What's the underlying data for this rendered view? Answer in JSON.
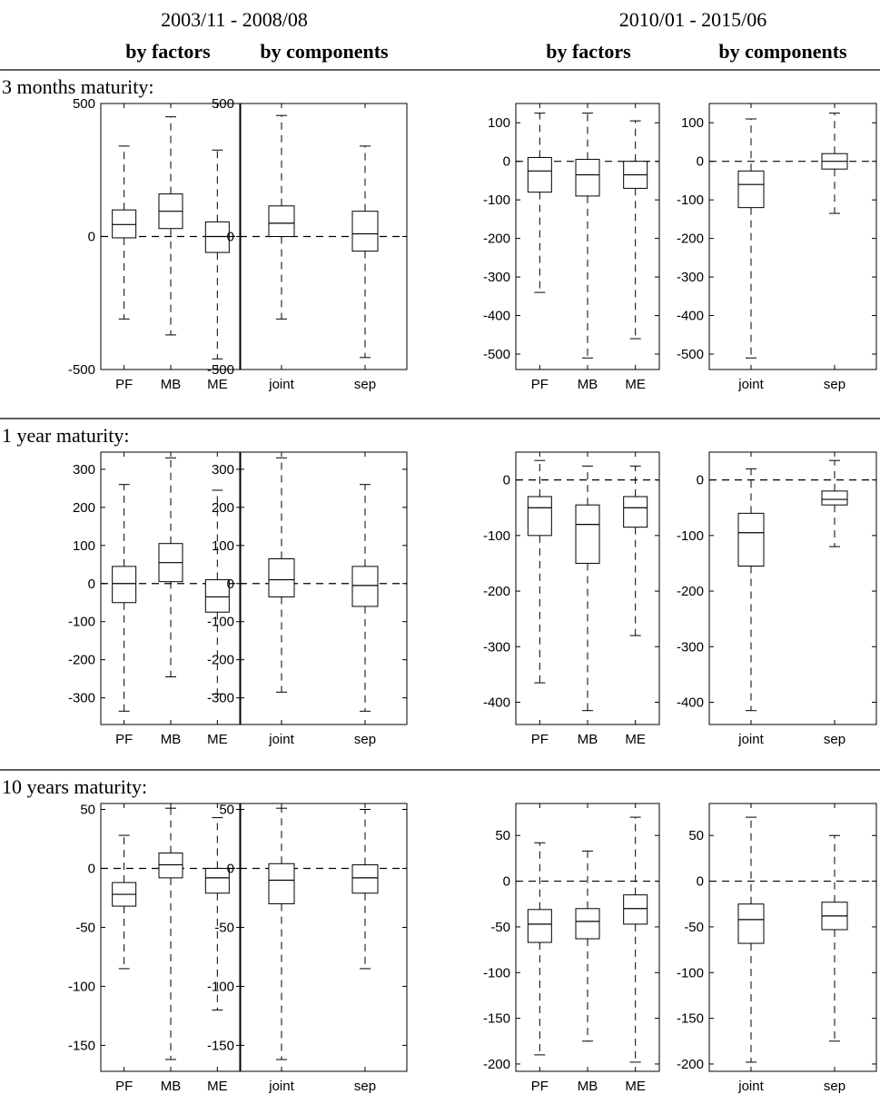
{
  "header": {
    "periods": [
      "2003/11 - 2008/08",
      "2010/01 - 2015/06"
    ],
    "subheaders": [
      "by factors",
      "by components",
      "by factors",
      "by components"
    ]
  },
  "sections": [
    {
      "label": "3 months maturity:"
    },
    {
      "label": "1 year maturity:"
    },
    {
      "label": "10 years maturity:"
    }
  ],
  "chart_data": [
    {
      "type": "box",
      "section": "3 months maturity:",
      "period": "2003/11 - 2008/08",
      "group": "by factors",
      "categories": [
        "PF",
        "MB",
        "ME"
      ],
      "ylim": [
        -500,
        500
      ],
      "yticks": [
        -500,
        0,
        500
      ],
      "ref_line": 0,
      "boxes": [
        {
          "whisker_low": -310,
          "q1": -5,
          "median": 45,
          "q3": 100,
          "whisker_high": 340
        },
        {
          "whisker_low": -370,
          "q1": 30,
          "median": 95,
          "q3": 160,
          "whisker_high": 450
        },
        {
          "whisker_low": -460,
          "q1": -60,
          "median": 0,
          "q3": 55,
          "whisker_high": 325
        }
      ]
    },
    {
      "type": "box",
      "section": "3 months maturity:",
      "period": "2003/11 - 2008/08",
      "group": "by components",
      "categories": [
        "joint",
        "sep"
      ],
      "ylim": [
        -500,
        500
      ],
      "yticks": [
        -500,
        0,
        500
      ],
      "ref_line": 0,
      "boxes": [
        {
          "whisker_low": -310,
          "q1": 0,
          "median": 50,
          "q3": 115,
          "whisker_high": 455
        },
        {
          "whisker_low": -455,
          "q1": -55,
          "median": 10,
          "q3": 95,
          "whisker_high": 340
        }
      ]
    },
    {
      "type": "box",
      "section": "3 months maturity:",
      "period": "2010/01 - 2015/06",
      "group": "by factors",
      "categories": [
        "PF",
        "MB",
        "ME"
      ],
      "ylim": [
        -540,
        150
      ],
      "yticks": [
        -500,
        -400,
        -300,
        -200,
        -100,
        0,
        100
      ],
      "ref_line": 0,
      "boxes": [
        {
          "whisker_low": -340,
          "q1": -80,
          "median": -25,
          "q3": 10,
          "whisker_high": 125
        },
        {
          "whisker_low": -510,
          "q1": -90,
          "median": -35,
          "q3": 5,
          "whisker_high": 125
        },
        {
          "whisker_low": -460,
          "q1": -70,
          "median": -35,
          "q3": 0,
          "whisker_high": 105
        }
      ]
    },
    {
      "type": "box",
      "section": "3 months maturity:",
      "period": "2010/01 - 2015/06",
      "group": "by components",
      "categories": [
        "joint",
        "sep"
      ],
      "ylim": [
        -540,
        150
      ],
      "yticks": [
        -500,
        -400,
        -300,
        -200,
        -100,
        0,
        100
      ],
      "ref_line": 0,
      "boxes": [
        {
          "whisker_low": -510,
          "q1": -120,
          "median": -60,
          "q3": -25,
          "whisker_high": 110
        },
        {
          "whisker_low": -135,
          "q1": -20,
          "median": 0,
          "q3": 20,
          "whisker_high": 125
        }
      ]
    },
    {
      "type": "box",
      "section": "1 year maturity:",
      "period": "2003/11 - 2008/08",
      "group": "by factors",
      "categories": [
        "PF",
        "MB",
        "ME"
      ],
      "ylim": [
        -370,
        345
      ],
      "yticks": [
        -300,
        -200,
        -100,
        0,
        100,
        200,
        300
      ],
      "ref_line": 0,
      "boxes": [
        {
          "whisker_low": -335,
          "q1": -50,
          "median": 0,
          "q3": 45,
          "whisker_high": 260
        },
        {
          "whisker_low": -245,
          "q1": 5,
          "median": 55,
          "q3": 105,
          "whisker_high": 330
        },
        {
          "whisker_low": -290,
          "q1": -75,
          "median": -35,
          "q3": 10,
          "whisker_high": 245
        }
      ]
    },
    {
      "type": "box",
      "section": "1 year maturity:",
      "period": "2003/11 - 2008/08",
      "group": "by components",
      "categories": [
        "joint",
        "sep"
      ],
      "ylim": [
        -370,
        345
      ],
      "yticks": [
        -300,
        -200,
        -100,
        0,
        100,
        200,
        300
      ],
      "ref_line": 0,
      "boxes": [
        {
          "whisker_low": -285,
          "q1": -35,
          "median": 10,
          "q3": 65,
          "whisker_high": 330
        },
        {
          "whisker_low": -335,
          "q1": -60,
          "median": -5,
          "q3": 45,
          "whisker_high": 260
        }
      ]
    },
    {
      "type": "box",
      "section": "1 year maturity:",
      "period": "2010/01 - 2015/06",
      "group": "by factors",
      "categories": [
        "PF",
        "MB",
        "ME"
      ],
      "ylim": [
        -440,
        50
      ],
      "yticks": [
        -400,
        -300,
        -200,
        -100,
        0
      ],
      "ref_line": 0,
      "boxes": [
        {
          "whisker_low": -365,
          "q1": -100,
          "median": -50,
          "q3": -30,
          "whisker_high": 35
        },
        {
          "whisker_low": -415,
          "q1": -150,
          "median": -80,
          "q3": -45,
          "whisker_high": 25
        },
        {
          "whisker_low": -280,
          "q1": -85,
          "median": -50,
          "q3": -30,
          "whisker_high": 25
        }
      ]
    },
    {
      "type": "box",
      "section": "1 year maturity:",
      "period": "2010/01 - 2015/06",
      "group": "by components",
      "categories": [
        "joint",
        "sep"
      ],
      "ylim": [
        -440,
        50
      ],
      "yticks": [
        -400,
        -300,
        -200,
        -100,
        0
      ],
      "ref_line": 0,
      "boxes": [
        {
          "whisker_low": -415,
          "q1": -155,
          "median": -95,
          "q3": -60,
          "whisker_high": 20
        },
        {
          "whisker_low": -120,
          "q1": -45,
          "median": -35,
          "q3": -20,
          "whisker_high": 35
        }
      ]
    },
    {
      "type": "box",
      "section": "10 years maturity:",
      "period": "2003/11 - 2008/08",
      "group": "by factors",
      "categories": [
        "PF",
        "MB",
        "ME"
      ],
      "ylim": [
        -172,
        55
      ],
      "yticks": [
        -150,
        -100,
        -50,
        0,
        50
      ],
      "ref_line": 0,
      "boxes": [
        {
          "whisker_low": -85,
          "q1": -32,
          "median": -22,
          "q3": -12,
          "whisker_high": 28
        },
        {
          "whisker_low": -162,
          "q1": -8,
          "median": 3,
          "q3": 13,
          "whisker_high": 51
        },
        {
          "whisker_low": -120,
          "q1": -21,
          "median": -8,
          "q3": 0,
          "whisker_high": 43
        }
      ]
    },
    {
      "type": "box",
      "section": "10 years maturity:",
      "period": "2003/11 - 2008/08",
      "group": "by components",
      "categories": [
        "joint",
        "sep"
      ],
      "ylim": [
        -172,
        55
      ],
      "yticks": [
        -150,
        -100,
        -50,
        0,
        50
      ],
      "ref_line": 0,
      "boxes": [
        {
          "whisker_low": -162,
          "q1": -30,
          "median": -10,
          "q3": 4,
          "whisker_high": 51
        },
        {
          "whisker_low": -85,
          "q1": -21,
          "median": -8,
          "q3": 3,
          "whisker_high": 50
        }
      ]
    },
    {
      "type": "box",
      "section": "10 years maturity:",
      "period": "2010/01 - 2015/06",
      "group": "by factors",
      "categories": [
        "PF",
        "MB",
        "ME"
      ],
      "ylim": [
        -208,
        85
      ],
      "yticks": [
        -200,
        -150,
        -100,
        -50,
        0,
        50
      ],
      "ref_line": 0,
      "boxes": [
        {
          "whisker_low": -190,
          "q1": -67,
          "median": -47,
          "q3": -31,
          "whisker_high": 42
        },
        {
          "whisker_low": -175,
          "q1": -63,
          "median": -44,
          "q3": -30,
          "whisker_high": 33
        },
        {
          "whisker_low": -198,
          "q1": -47,
          "median": -30,
          "q3": -15,
          "whisker_high": 70
        }
      ]
    },
    {
      "type": "box",
      "section": "10 years maturity:",
      "period": "2010/01 - 2015/06",
      "group": "by components",
      "categories": [
        "joint",
        "sep"
      ],
      "ylim": [
        -208,
        85
      ],
      "yticks": [
        -200,
        -150,
        -100,
        -50,
        0,
        50
      ],
      "ref_line": 0,
      "boxes": [
        {
          "whisker_low": -198,
          "q1": -68,
          "median": -42,
          "q3": -25,
          "whisker_high": 70
        },
        {
          "whisker_low": -175,
          "q1": -53,
          "median": -38,
          "q3": -23,
          "whisker_high": 50
        }
      ]
    }
  ]
}
